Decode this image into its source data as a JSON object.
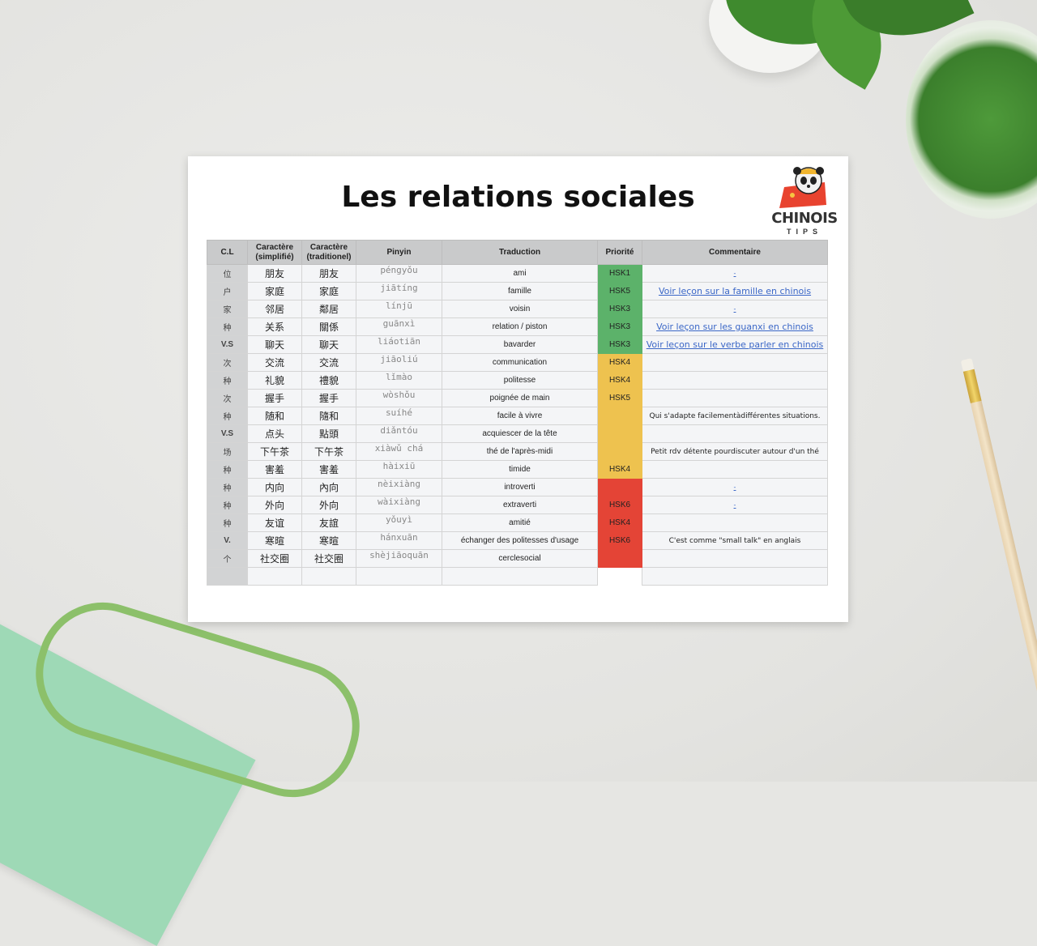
{
  "document": {
    "title": "Les relations sociales",
    "logo": {
      "brand": "CHINOIS",
      "sub": "TIPS"
    },
    "colors": {
      "green": "#5cb26a",
      "yellow": "#eec24f",
      "red": "#e44436",
      "link": "#3b67c7"
    },
    "headers": [
      "C.L",
      "Caractère (simplifié)",
      "Caractère (traditionel)",
      "Pinyin",
      "Traduction",
      "Priorité",
      "Commentaire"
    ],
    "rows": [
      {
        "cl": "位",
        "s": "朋友",
        "t": "朋友",
        "py": "péngyǒu",
        "tr": "ami",
        "pr": "HSK1",
        "lvl": "green",
        "cm": "-",
        "link": true
      },
      {
        "cl": "户",
        "s": "家庭",
        "t": "家庭",
        "py": "jiātíng",
        "tr": "famille",
        "pr": "HSK5",
        "lvl": "green",
        "cm": "Voir leçon sur la famille en chinois",
        "link": true
      },
      {
        "cl": "家",
        "s": "邻居",
        "t": "鄰居",
        "py": "línjū",
        "tr": "voisin",
        "pr": "HSK3",
        "lvl": "green",
        "cm": "-",
        "link": true
      },
      {
        "cl": "种",
        "s": "关系",
        "t": "關係",
        "py": "guānxì",
        "tr": "relation / piston",
        "pr": "HSK3",
        "lvl": "green",
        "cm": "Voir leçon sur les guanxi en chinois",
        "link": true
      },
      {
        "cl": "V.S",
        "s": "聊天",
        "t": "聊天",
        "py": "liáotiān",
        "tr": "bavarder",
        "pr": "HSK3",
        "lvl": "green",
        "cm": "Voir leçon sur le verbe parler en chinois",
        "link": true
      },
      {
        "cl": "次",
        "s": "交流",
        "t": "交流",
        "py": "jiāoliú",
        "tr": "communication",
        "pr": "HSK4",
        "lvl": "yellow",
        "cm": ""
      },
      {
        "cl": "种",
        "s": "礼貌",
        "t": "禮貌",
        "py": "lǐmào",
        "tr": "politesse",
        "pr": "HSK4",
        "lvl": "yellow",
        "cm": ""
      },
      {
        "cl": "次",
        "s": "握手",
        "t": "握手",
        "py": "wòshǒu",
        "tr": "poignée de main",
        "pr": "HSK5",
        "lvl": "yellow",
        "cm": ""
      },
      {
        "cl": "种",
        "s": "随和",
        "t": "隨和",
        "py": "suíhé",
        "tr": "facile à vivre",
        "pr": "",
        "lvl": "yellow",
        "cm": "Qui s'adapte facilementàdifférentes situations."
      },
      {
        "cl": "V.S",
        "s": "点头",
        "t": "點頭",
        "py": "diǎntóu",
        "tr": "acquiescer de la tête",
        "pr": "",
        "lvl": "yellow",
        "cm": ""
      },
      {
        "cl": "场",
        "s": "下午茶",
        "t": "下午茶",
        "py": "xiàwǔ chá",
        "tr": "thé de l'après-midi",
        "pr": "",
        "lvl": "yellow",
        "cm": "Petit rdv détente pourdiscuter autour d'un thé"
      },
      {
        "cl": "种",
        "s": "害羞",
        "t": "害羞",
        "py": "hàixiū",
        "tr": "timide",
        "pr": "HSK4",
        "lvl": "yellow",
        "cm": ""
      },
      {
        "cl": "种",
        "s": "内向",
        "t": "內向",
        "py": "nèixiàng",
        "tr": "introverti",
        "pr": "",
        "lvl": "red",
        "cm": "-",
        "link": true
      },
      {
        "cl": "种",
        "s": "外向",
        "t": "外向",
        "py": "wàixiàng",
        "tr": "extraverti",
        "pr": "HSK6",
        "lvl": "red",
        "cm": "-",
        "link": true
      },
      {
        "cl": "种",
        "s": "友谊",
        "t": "友誼",
        "py": "yǒuyì",
        "tr": "amitié",
        "pr": "HSK4",
        "lvl": "red",
        "cm": ""
      },
      {
        "cl": "V.",
        "s": "寒暄",
        "t": "寒暄",
        "py": "hánxuān",
        "tr": "échanger des politesses d'usage",
        "pr": "HSK6",
        "lvl": "red",
        "cm": "C'est comme \"small talk\" en anglais"
      },
      {
        "cl": "个",
        "s": "社交圈",
        "t": "社交圈",
        "py": "shèjiāoquān",
        "tr": "cerclesocial",
        "pr": "",
        "lvl": "red",
        "cm": ""
      },
      {
        "cl": "",
        "s": "",
        "t": "",
        "py": "",
        "tr": "",
        "pr": "",
        "lvl": "none",
        "cm": ""
      }
    ]
  }
}
